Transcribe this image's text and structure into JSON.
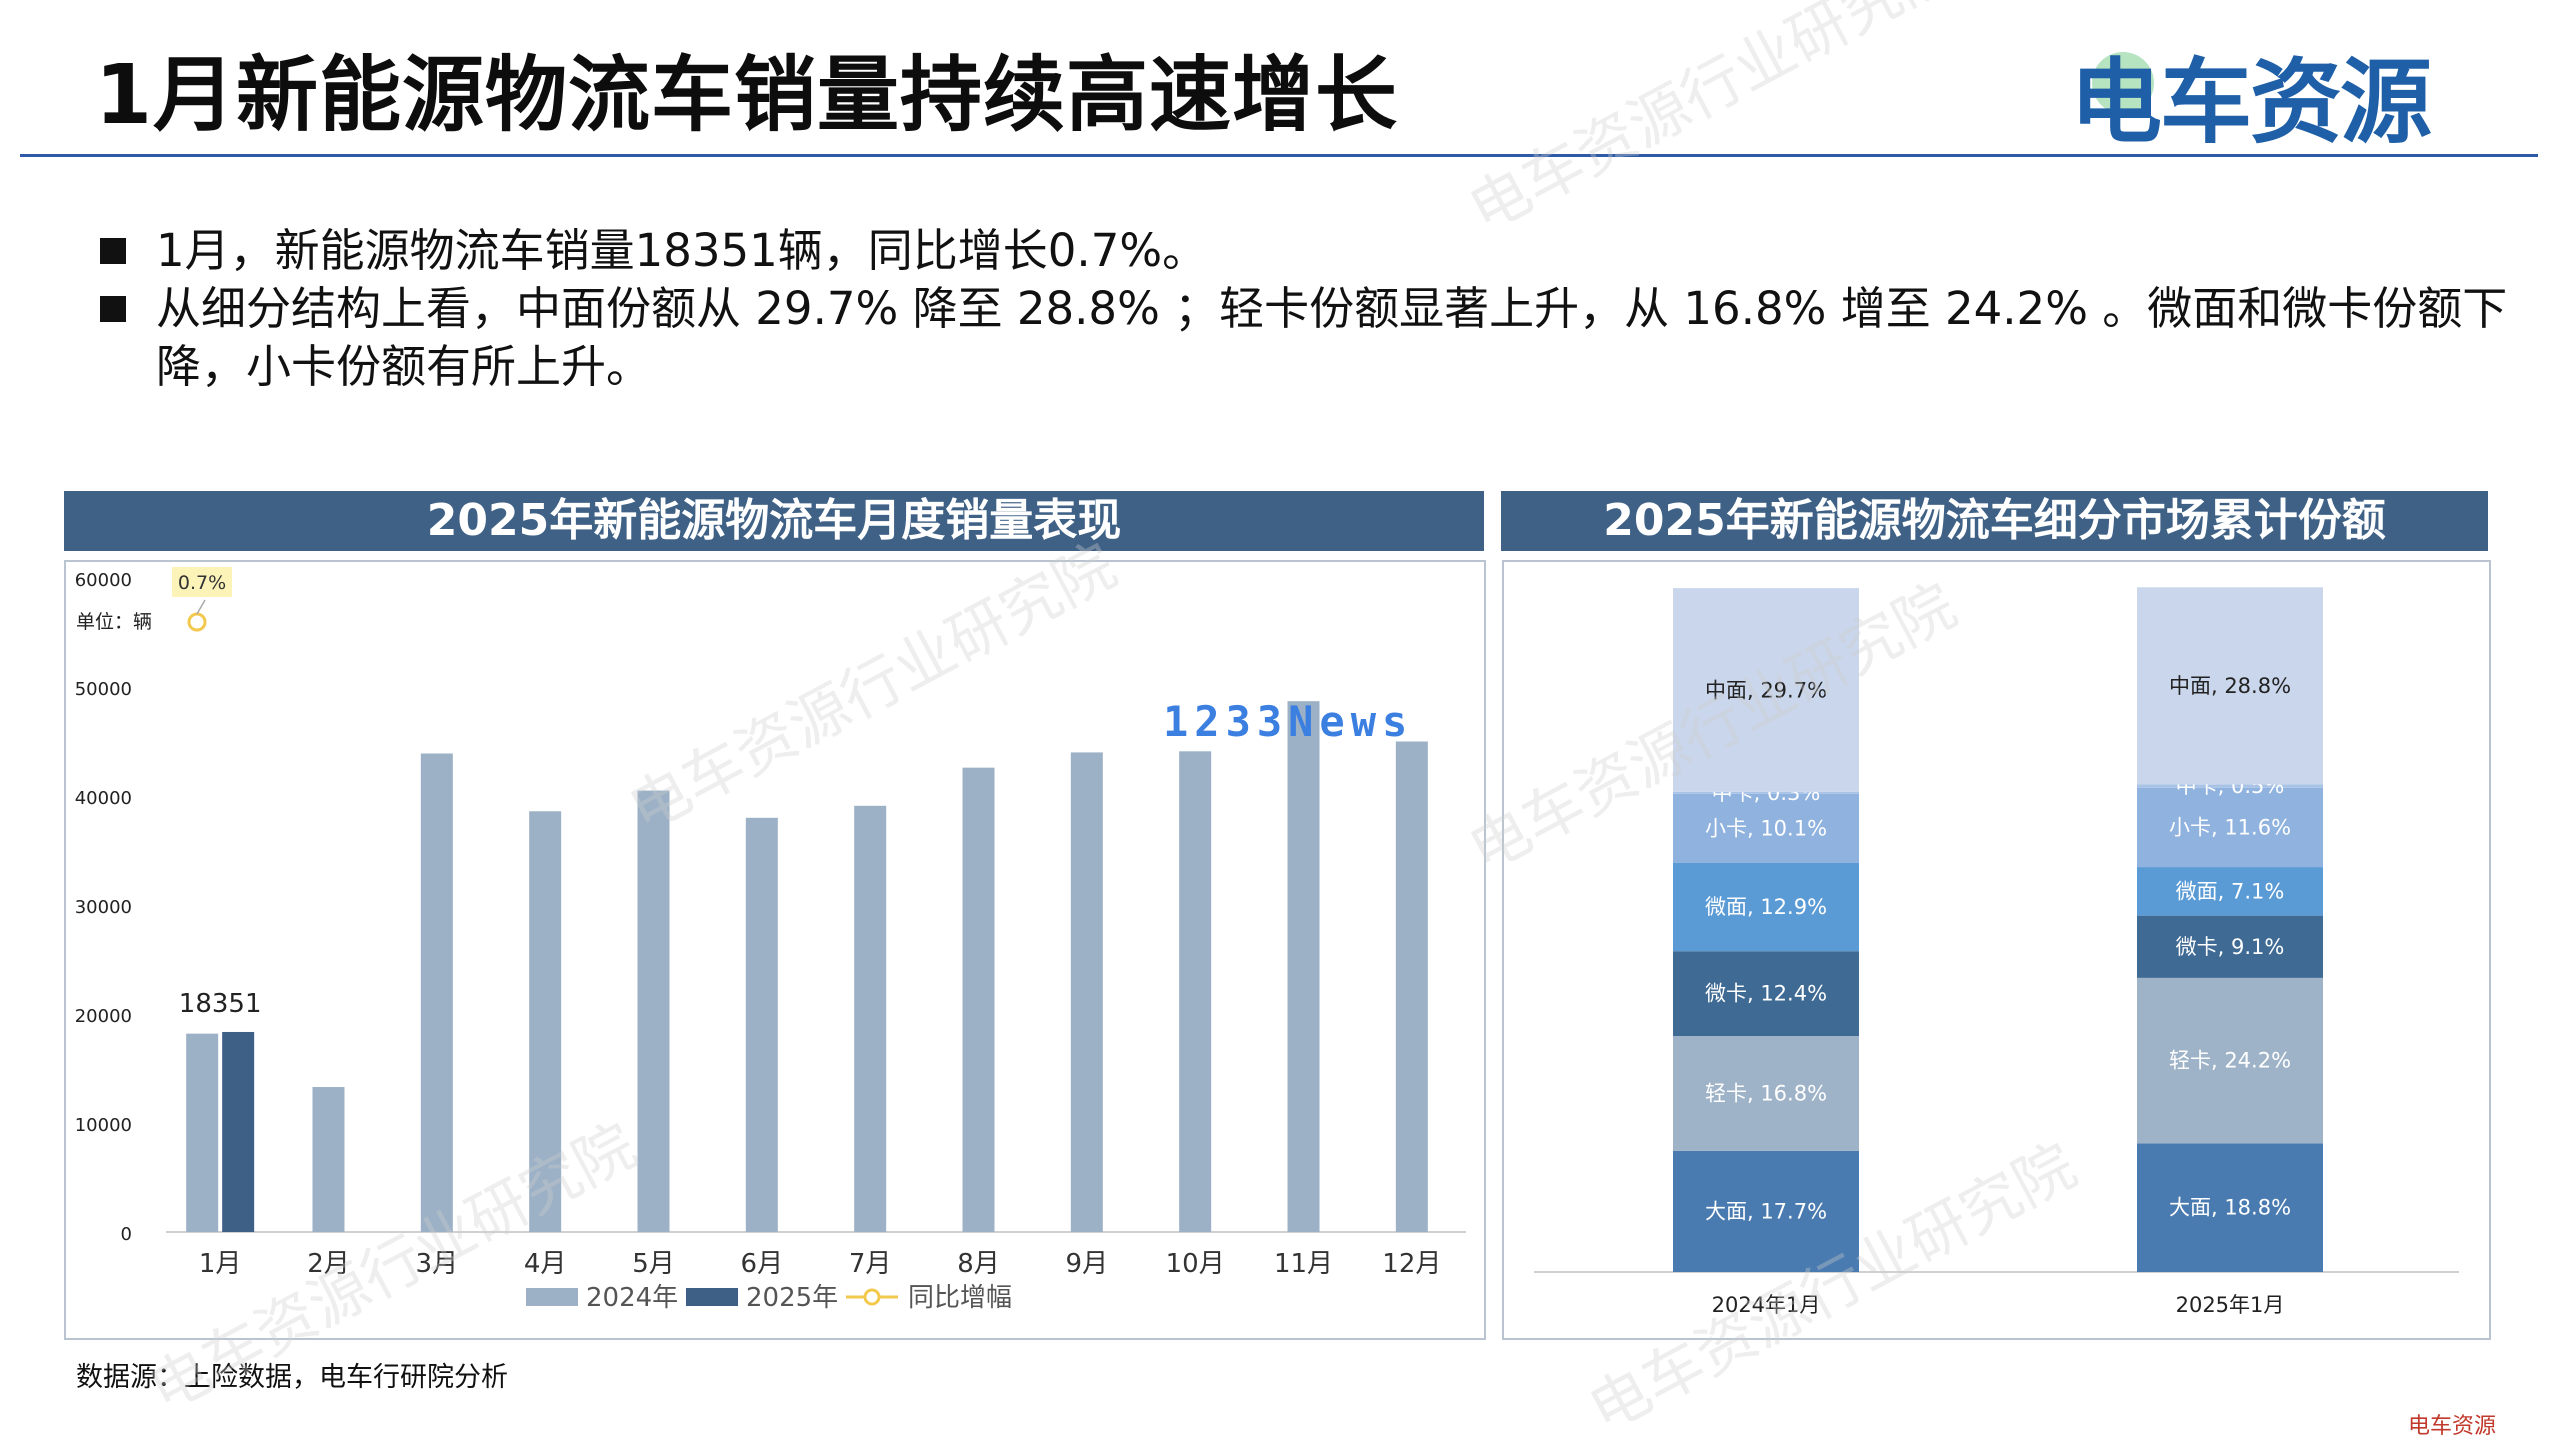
{
  "header": {
    "title": "1月新能源物流车销量持续高速增长",
    "brand": "电车资源"
  },
  "bullets": [
    "1月，新能源物流车销量18351辆，同比增长0.7%。",
    "从细分结构上看，中面份额从 29.7% 降至 28.8% ；轻卡份额显著上升，从 16.8% 增至 24.2% 。微面和微卡份额下降，小卡份额有所上升。"
  ],
  "left_panel": {
    "title": "2025年新能源物流车月度销量表现"
  },
  "right_panel": {
    "title": "2025年新能源物流车细分市场累计份额"
  },
  "source": "数据源：上险数据，电车行研院分析",
  "watermark": "电车资源行业研究院",
  "overlay_logo": "1233News",
  "footer_brand": "电车资源",
  "colors": {
    "header_bar": "#3f6186",
    "bar_2024": "#9cb1c6",
    "bar_2025": "#3e5f86",
    "growth_line": "#f2c94c",
    "brand": "#1f5fa8",
    "seg_dark": "#4a7bb0",
    "seg_mid": "#5b9bd5",
    "seg_light": "#c9d6eb"
  },
  "chart_data": [
    {
      "type": "bar",
      "title": "2025年新能源物流车月度销量表现",
      "unit_label": "单位：辆",
      "categories": [
        "1月",
        "2月",
        "3月",
        "4月",
        "5月",
        "6月",
        "7月",
        "8月",
        "9月",
        "10月",
        "11月",
        "12月"
      ],
      "series": [
        {
          "name": "2024年",
          "values": [
            18200,
            13300,
            43900,
            38600,
            40500,
            38000,
            39100,
            42600,
            44000,
            44100,
            48700,
            45000
          ]
        },
        {
          "name": "2025年",
          "values": [
            18351,
            null,
            null,
            null,
            null,
            null,
            null,
            null,
            null,
            null,
            null,
            null
          ]
        },
        {
          "name": "同比增幅",
          "type": "line",
          "values": [
            0.7,
            null,
            null,
            null,
            null,
            null,
            null,
            null,
            null,
            null,
            null,
            null
          ]
        }
      ],
      "data_labels": [
        {
          "category": "1月",
          "series": "2025年",
          "text": "18351"
        },
        {
          "category": "1月",
          "series": "同比增幅",
          "text": "0.7%"
        }
      ],
      "ylim": [
        0,
        60000
      ],
      "yticks": [
        0,
        10000,
        20000,
        30000,
        40000,
        50000,
        60000
      ],
      "legend": "bottom",
      "grid": false
    },
    {
      "type": "bar",
      "stacked": true,
      "percent": true,
      "title": "2025年新能源物流车细分市场累计份额",
      "categories": [
        "2024年1月",
        "2025年1月"
      ],
      "series": [
        {
          "name": "大面",
          "values": [
            17.7,
            18.8
          ],
          "color": "#4a7bb0",
          "text_color": "#ffffff"
        },
        {
          "name": "轻卡",
          "values": [
            16.8,
            24.2
          ],
          "color": "#9fb3c8",
          "text_color": "#ffffff"
        },
        {
          "name": "微卡",
          "values": [
            12.4,
            9.1
          ],
          "color": "#3e6a94",
          "text_color": "#ffffff"
        },
        {
          "name": "微面",
          "values": [
            12.9,
            7.1
          ],
          "color": "#5b9bd5",
          "text_color": "#ffffff"
        },
        {
          "name": "小卡",
          "values": [
            10.1,
            11.6
          ],
          "color": "#8fb2de",
          "text_color": "#ffffff"
        },
        {
          "name": "中卡",
          "values": [
            0.3,
            0.5
          ],
          "color": "#a9c3e6",
          "text_color": "#ffffff"
        },
        {
          "name": "中面",
          "values": [
            29.7,
            28.8
          ],
          "color": "#c9d6eb",
          "text_color": "#222222"
        }
      ],
      "ylim": [
        0,
        100
      ],
      "legend": "none"
    }
  ]
}
